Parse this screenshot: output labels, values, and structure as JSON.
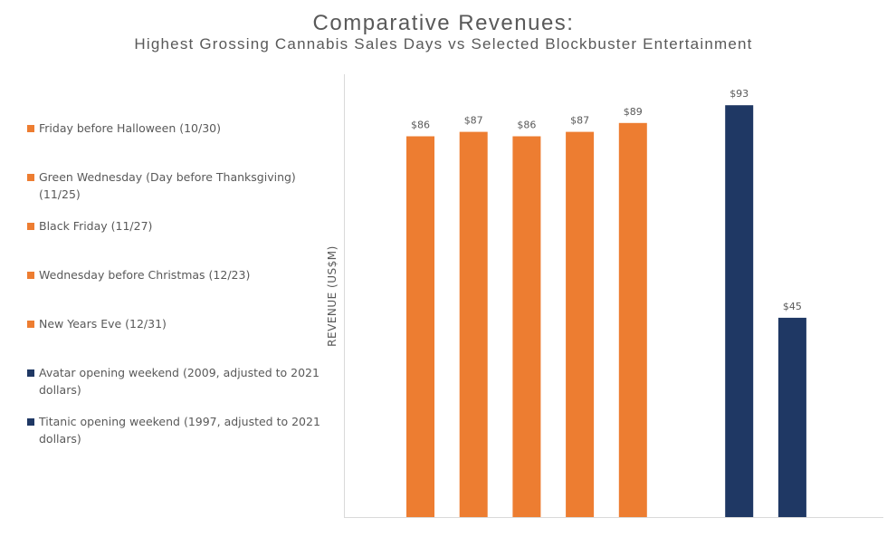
{
  "chart_data": {
    "type": "bar",
    "title": "Comparative  Revenues:",
    "subtitle": "Highest Grossing Cannabis Sales Days vs Selected Blockbuster Entertainment",
    "ylabel": "REVENUE (US$M)",
    "xlabel": "",
    "ylim": [
      0,
      100
    ],
    "grid": false,
    "legend_position": "left",
    "categories": [
      "Friday before Halloween (10/30)",
      "Green Wednesday (Day before Thanksgiving) (11/25)",
      "Black Friday (11/27)",
      "Wednesday before Christmas (12/23)",
      "New Years Eve (12/31)",
      "Avatar opening weekend (2009, adjusted to 2021 dollars)",
      "Titanic opening weekend (1997, adjusted to 2021 dollars)"
    ],
    "values": [
      86,
      87,
      86,
      87,
      89,
      93,
      45
    ],
    "data_labels": [
      "$86",
      "$87",
      "$86",
      "$87",
      "$89",
      "$93",
      "$45"
    ],
    "colors": [
      "#ED7D31",
      "#ED7D31",
      "#ED7D31",
      "#ED7D31",
      "#ED7D31",
      "#1F3864",
      "#1F3864"
    ]
  },
  "legend": [
    {
      "label": "Friday before Halloween (10/30)",
      "color": "#ED7D31"
    },
    {
      "label": "Green Wednesday (Day before Thanksgiving) (11/25)",
      "color": "#ED7D31"
    },
    {
      "label": "Black Friday (11/27)",
      "color": "#ED7D31"
    },
    {
      "label": "Wednesday before Christmas (12/23)",
      "color": "#ED7D31"
    },
    {
      "label": "New Years Eve (12/31)",
      "color": "#ED7D31"
    },
    {
      "label": "Avatar opening weekend (2009, adjusted to 2021 dollars)",
      "color": "#1F3864"
    },
    {
      "label": "Titanic opening weekend (1997, adjusted to 2021 dollars)",
      "color": "#1F3864"
    }
  ]
}
